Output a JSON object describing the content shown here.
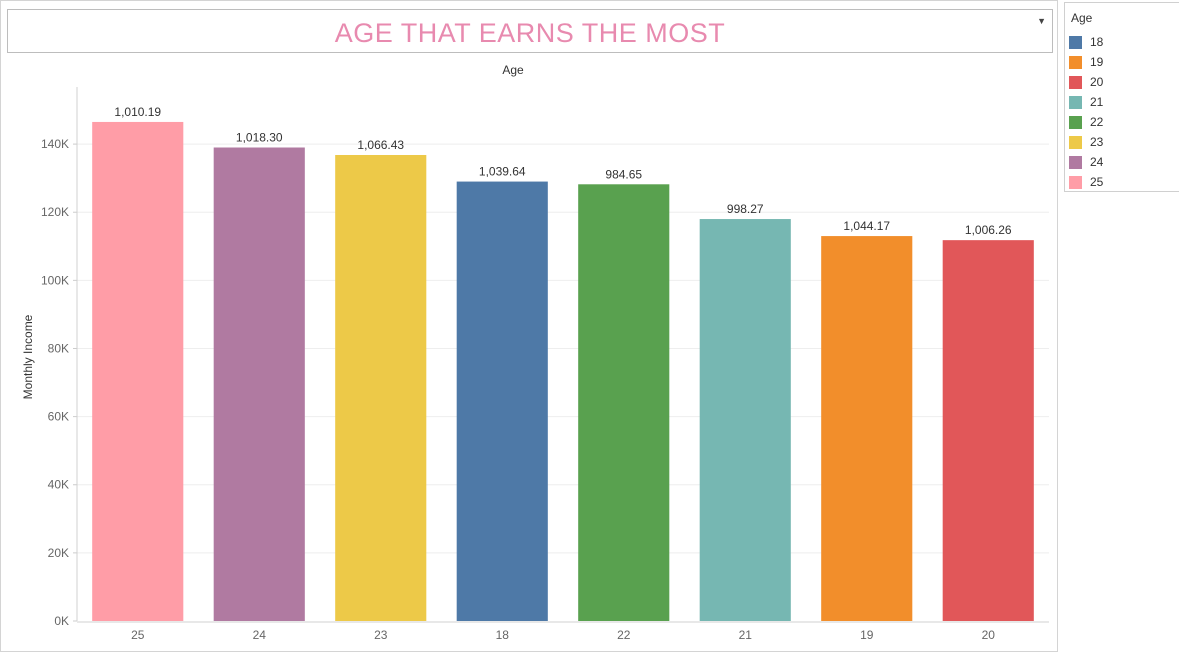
{
  "title": "AGE THAT EARNS THE MOST",
  "chart_data": {
    "type": "bar",
    "title": "AGE THAT EARNS THE MOST",
    "top_header": "Age",
    "xlabel": "",
    "ylabel": "Monthly Income",
    "categories": [
      "25",
      "24",
      "23",
      "18",
      "22",
      "21",
      "19",
      "20"
    ],
    "values": [
      146500,
      139000,
      136800,
      129000,
      128200,
      118000,
      113000,
      111800
    ],
    "labels": [
      "1,010.19",
      "1,018.30",
      "1,066.43",
      "1,039.64",
      "984.65",
      "998.27",
      "1,044.17",
      "1,006.26"
    ],
    "colors": [
      "#ff9da7",
      "#b07aa1",
      "#edc948",
      "#4e79a7",
      "#59a14f",
      "#76b7b2",
      "#f28e2b",
      "#e15759"
    ],
    "ylim": [
      0,
      155000
    ],
    "yticks": [
      0,
      20000,
      40000,
      60000,
      80000,
      100000,
      120000,
      140000
    ],
    "ytick_labels": [
      "0K",
      "20K",
      "40K",
      "60K",
      "80K",
      "100K",
      "120K",
      "140K"
    ],
    "grid": true,
    "legend_position": "right"
  },
  "legend": {
    "title": "Age",
    "items": [
      {
        "label": "18",
        "color": "#4e79a7"
      },
      {
        "label": "19",
        "color": "#f28e2b"
      },
      {
        "label": "20",
        "color": "#e15759"
      },
      {
        "label": "21",
        "color": "#76b7b2"
      },
      {
        "label": "22",
        "color": "#59a14f"
      },
      {
        "label": "23",
        "color": "#edc948"
      },
      {
        "label": "24",
        "color": "#b07aa1"
      },
      {
        "label": "25",
        "color": "#ff9da7"
      }
    ]
  }
}
